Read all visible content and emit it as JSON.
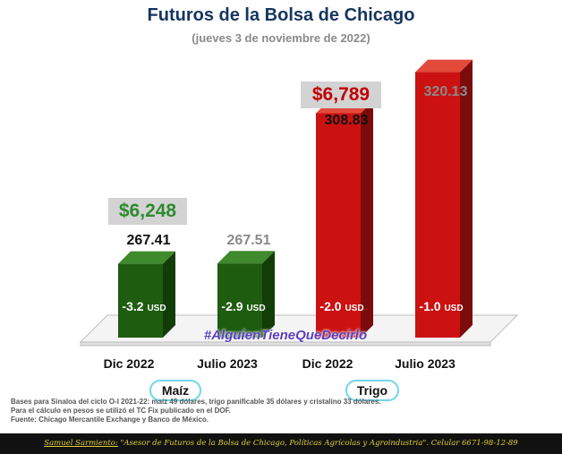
{
  "title": "Futuros de la Bolsa de Chicago",
  "subtitle": "(jueves 3 de noviembre de 2022)",
  "hashtag": "#AlguienTieneQueDecirlo",
  "colors": {
    "title": "#15355f",
    "maiz": "#1e5c0f",
    "trigo": "#cc1111",
    "price_maiz": "#2e8b2e",
    "price_trigo": "#c00000"
  },
  "price_labels": {
    "maiz": "$6,248",
    "trigo": "$6,789"
  },
  "groups": {
    "maiz": "Maíz",
    "trigo": "Trigo"
  },
  "chart_data": {
    "type": "bar",
    "categories": [
      "Dic 2022",
      "Julio 2023",
      "Dic 2022",
      "Julio 2023"
    ],
    "values": [
      267.41,
      267.51,
      308.83,
      320.13
    ],
    "value_labels": [
      "267.41",
      "267.51",
      "308.83",
      "320.13"
    ],
    "bar_labels": [
      "-3.2",
      "-2.9",
      "-2.0",
      "-1.0"
    ],
    "bar_unit": "USD",
    "groups": [
      "Maíz",
      "Maíz",
      "Trigo",
      "Trigo"
    ]
  },
  "notes": [
    "Bases para Sinaloa del ciclo O-I 2021-22: maíz 49 dólares, trigo panificable 35 dólares y cristalino 33 dólares.",
    "Para el cálculo en pesos se utilizó el TC Fix publicado en el DOF.",
    "Fuente: Chicago Mercantile Exchange y Banco de México."
  ],
  "footer": {
    "name": "Samuel Sarmiento:",
    "text": "\"Asesor de Futuros de la Bolsa de Chicago, Políticas Agrícolas y Agroindustria\". Celular 6671-98-12-89"
  }
}
